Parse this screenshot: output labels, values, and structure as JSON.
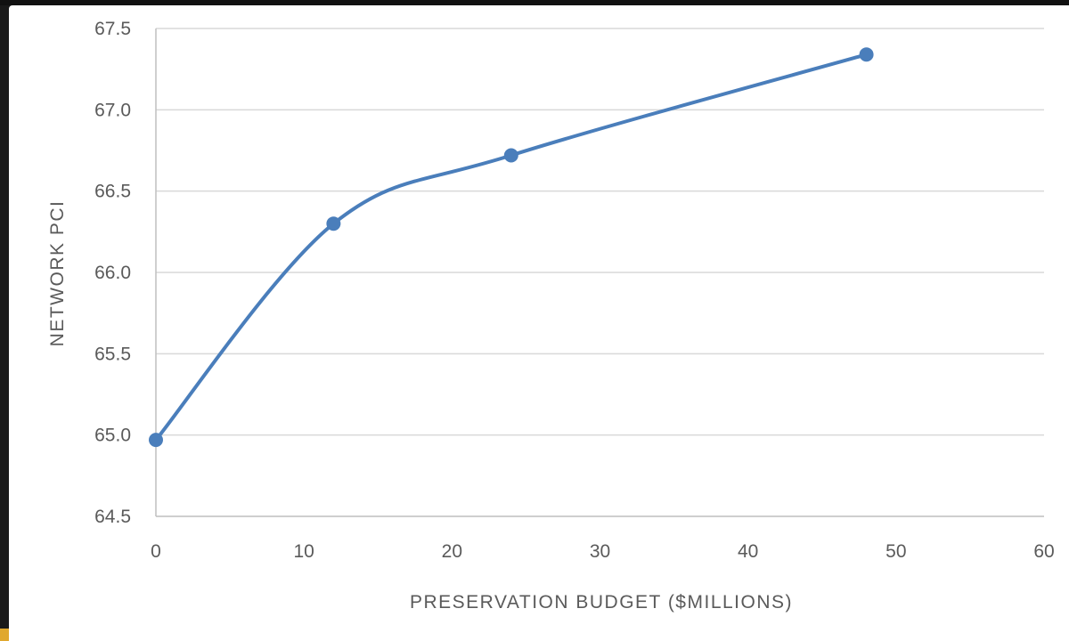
{
  "chart_data": {
    "type": "line",
    "title": "",
    "xlabel": "PRESERVATION BUDGET ($MILLIONS)",
    "ylabel": "NETWORK PCI",
    "xlim": [
      0,
      60
    ],
    "ylim": [
      64.5,
      67.5
    ],
    "x_ticks": [
      "0",
      "10",
      "20",
      "30",
      "40",
      "50",
      "60"
    ],
    "y_ticks": [
      "64.5",
      "65.0",
      "65.5",
      "66.0",
      "66.5",
      "67.0",
      "67.5"
    ],
    "grid": "horizontal",
    "smooth": true,
    "series": [
      {
        "x": [
          0,
          12,
          24,
          48
        ],
        "y": [
          64.97,
          66.3,
          66.72,
          67.34
        ]
      }
    ],
    "colors": {
      "line": "#4a7ebb",
      "grid": "#d9d9d9",
      "text": "#5a5a5a"
    }
  }
}
